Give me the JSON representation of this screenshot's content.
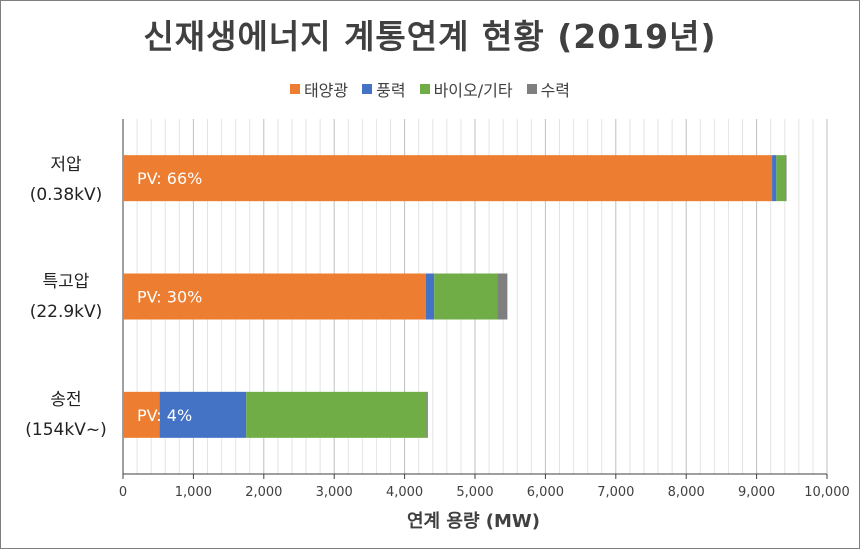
{
  "chart_data": {
    "type": "bar",
    "orientation": "horizontal",
    "stacked": true,
    "title": "신재생에너지 계통연계 현황 (2019년)",
    "xlabel": "연계 용량 (MW)",
    "ylabel": "",
    "xlim": [
      0,
      10000
    ],
    "xticks": [
      "0",
      "1,000",
      "2,000",
      "3,000",
      "4,000",
      "5,000",
      "6,000",
      "7,000",
      "8,000",
      "9,000",
      "10,000"
    ],
    "grid": true,
    "legend_position": "top",
    "categories": [
      {
        "line1": "저압",
        "line2": "(0.38kV)"
      },
      {
        "line1": "특고압",
        "line2": "(22.9kV)"
      },
      {
        "line1": "송전",
        "line2": "(154kV~)"
      }
    ],
    "series": [
      {
        "name": "태양광",
        "color": "#ed7d31",
        "values": [
          9220,
          4300,
          520
        ]
      },
      {
        "name": "풍력",
        "color": "#4472c4",
        "values": [
          60,
          120,
          1230
        ]
      },
      {
        "name": "바이오/기타",
        "color": "#70ad47",
        "values": [
          130,
          900,
          2560
        ]
      },
      {
        "name": "수력",
        "color": "#7f7f7f",
        "values": [
          15,
          140,
          20
        ]
      }
    ],
    "annotations": [
      "PV: 66%",
      "PV: 30%",
      "PV: 4%"
    ]
  }
}
